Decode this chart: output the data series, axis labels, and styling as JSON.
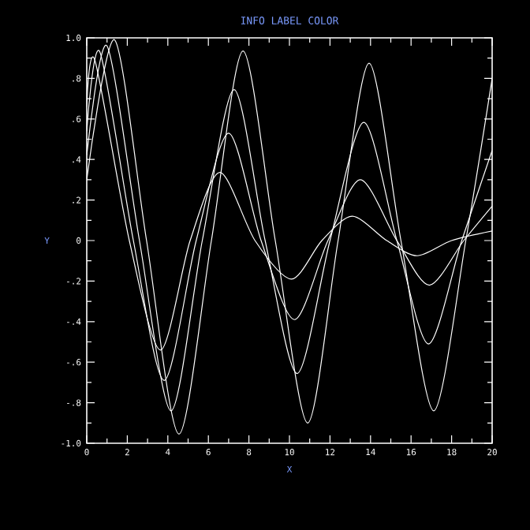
{
  "chart_data": {
    "type": "line",
    "title": "INFO LABEL COLOR",
    "xlabel": "X",
    "ylabel": "Y",
    "xlim": [
      0,
      20
    ],
    "ylim": [
      -1,
      1
    ],
    "xticks": [
      0,
      2,
      4,
      6,
      8,
      10,
      12,
      14,
      16,
      18,
      20
    ],
    "yticks": [
      {
        "value": -1,
        "label": "-1.0"
      },
      {
        "value": -0.8,
        "label": "-.8"
      },
      {
        "value": -0.6,
        "label": "-.6"
      },
      {
        "value": -0.4,
        "label": "-.4"
      },
      {
        "value": -0.2,
        "label": "-.2"
      },
      0,
      {
        "value": 0.2,
        "label": ".2"
      },
      {
        "value": 0.4,
        "label": ".4"
      },
      {
        "value": 0.6,
        "label": ".6"
      },
      {
        "value": 0.8,
        "label": ".8"
      },
      {
        "value": 1,
        "label": "1.0"
      }
    ],
    "series": [
      {
        "color": "#ffffff",
        "x": [
          0,
          1.38,
          2.95,
          4.55,
          6.15,
          7.71,
          9.3,
          10.9,
          12.4,
          13.93,
          15.5,
          17.12,
          18.7,
          20
        ],
        "values": [
          0.3,
          0.99,
          0,
          -0.955,
          0,
          0.935,
          0,
          -0.9,
          0,
          0.875,
          0,
          -0.84,
          0,
          0.8
        ]
      },
      {
        "color": "#ffffff",
        "x": [
          0,
          1.0,
          2.6,
          4.16,
          5.7,
          7.27,
          8.8,
          10.38,
          12.0,
          13.67,
          15.3,
          16.86,
          18.5,
          20
        ],
        "values": [
          0.42,
          0.96,
          0,
          -0.84,
          0,
          0.745,
          0,
          -0.656,
          0,
          0.583,
          0,
          -0.51,
          0,
          0.445
        ]
      },
      {
        "color": "#ffffff",
        "x": [
          0,
          0.65,
          2.3,
          3.82,
          5.4,
          7.0,
          8.6,
          10.25,
          11.9,
          13.5,
          15.3,
          16.9,
          18.6,
          20
        ],
        "values": [
          0.54,
          0.93,
          0,
          -0.69,
          0,
          0.53,
          0,
          -0.39,
          0,
          0.3,
          0,
          -0.22,
          0,
          0.17
        ]
      },
      {
        "color": "#ffffff",
        "x": [
          0,
          0.4,
          2.1,
          3.64,
          5.1,
          6.57,
          8.3,
          10.1,
          11.6,
          13.1,
          14.8,
          16.3,
          18.0,
          20
        ],
        "values": [
          0.66,
          0.89,
          0,
          -0.54,
          0,
          0.336,
          0,
          -0.19,
          0,
          0.12,
          0,
          -0.075,
          0,
          0.047
        ]
      }
    ]
  }
}
